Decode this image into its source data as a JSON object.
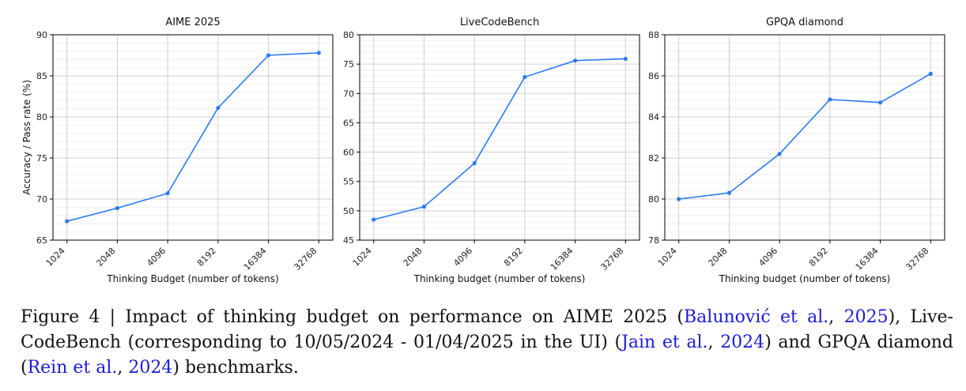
{
  "chart_data": [
    {
      "type": "line",
      "title": "AIME 2025",
      "xlabel": "Thinking Budget (number of tokens)",
      "ylabel": "Accuracy / Pass rate (%)",
      "categories": [
        "1024",
        "2048",
        "4096",
        "8192",
        "16384",
        "32768"
      ],
      "values": [
        67.3,
        68.9,
        70.7,
        81.1,
        87.5,
        87.8
      ],
      "ylim": [
        65,
        90
      ],
      "yticks": [
        65,
        70,
        75,
        80,
        85,
        90
      ],
      "grid": true,
      "color": "#2b7bf0"
    },
    {
      "type": "line",
      "title": "LiveCodeBench",
      "xlabel": "Thinking budget (number of tokens)",
      "ylabel": "",
      "categories": [
        "1024",
        "2048",
        "4096",
        "8192",
        "16384",
        "32768"
      ],
      "values": [
        48.5,
        50.7,
        58.1,
        72.8,
        75.6,
        75.9
      ],
      "ylim": [
        45,
        80
      ],
      "yticks": [
        45,
        50,
        55,
        60,
        65,
        70,
        75,
        80
      ],
      "grid": true,
      "color": "#2b7bf0"
    },
    {
      "type": "line",
      "title": "GPQA diamond",
      "xlabel": "Thinking budget (number of tokens)",
      "ylabel": "",
      "categories": [
        "1024",
        "2048",
        "4096",
        "8192",
        "16384",
        "32768"
      ],
      "values": [
        80.0,
        80.3,
        82.2,
        84.85,
        84.7,
        86.1
      ],
      "ylim": [
        78,
        88
      ],
      "yticks": [
        78,
        80,
        82,
        84,
        86,
        88
      ],
      "grid": true,
      "color": "#2b7bf0"
    }
  ],
  "caption": {
    "figure_label": "Figure 4 | ",
    "text_1": "Impact of thinking budget on performance on AIME 2025 (",
    "cite_1_authors": "Balunović et al.",
    "sep_1": ", ",
    "cite_1_year": "2025",
    "text_2": "), Live-CodeBench (corresponding to 10/05/2024 - 01/04/2025 in the UI) (",
    "cite_2_authors": "Jain et al.",
    "sep_2": ", ",
    "cite_2_year": "2024",
    "text_3": ") and GPQA diamond (",
    "cite_3_authors": "Rein et al.",
    "sep_3": ", ",
    "cite_3_year": "2024",
    "text_4": ") benchmarks."
  }
}
